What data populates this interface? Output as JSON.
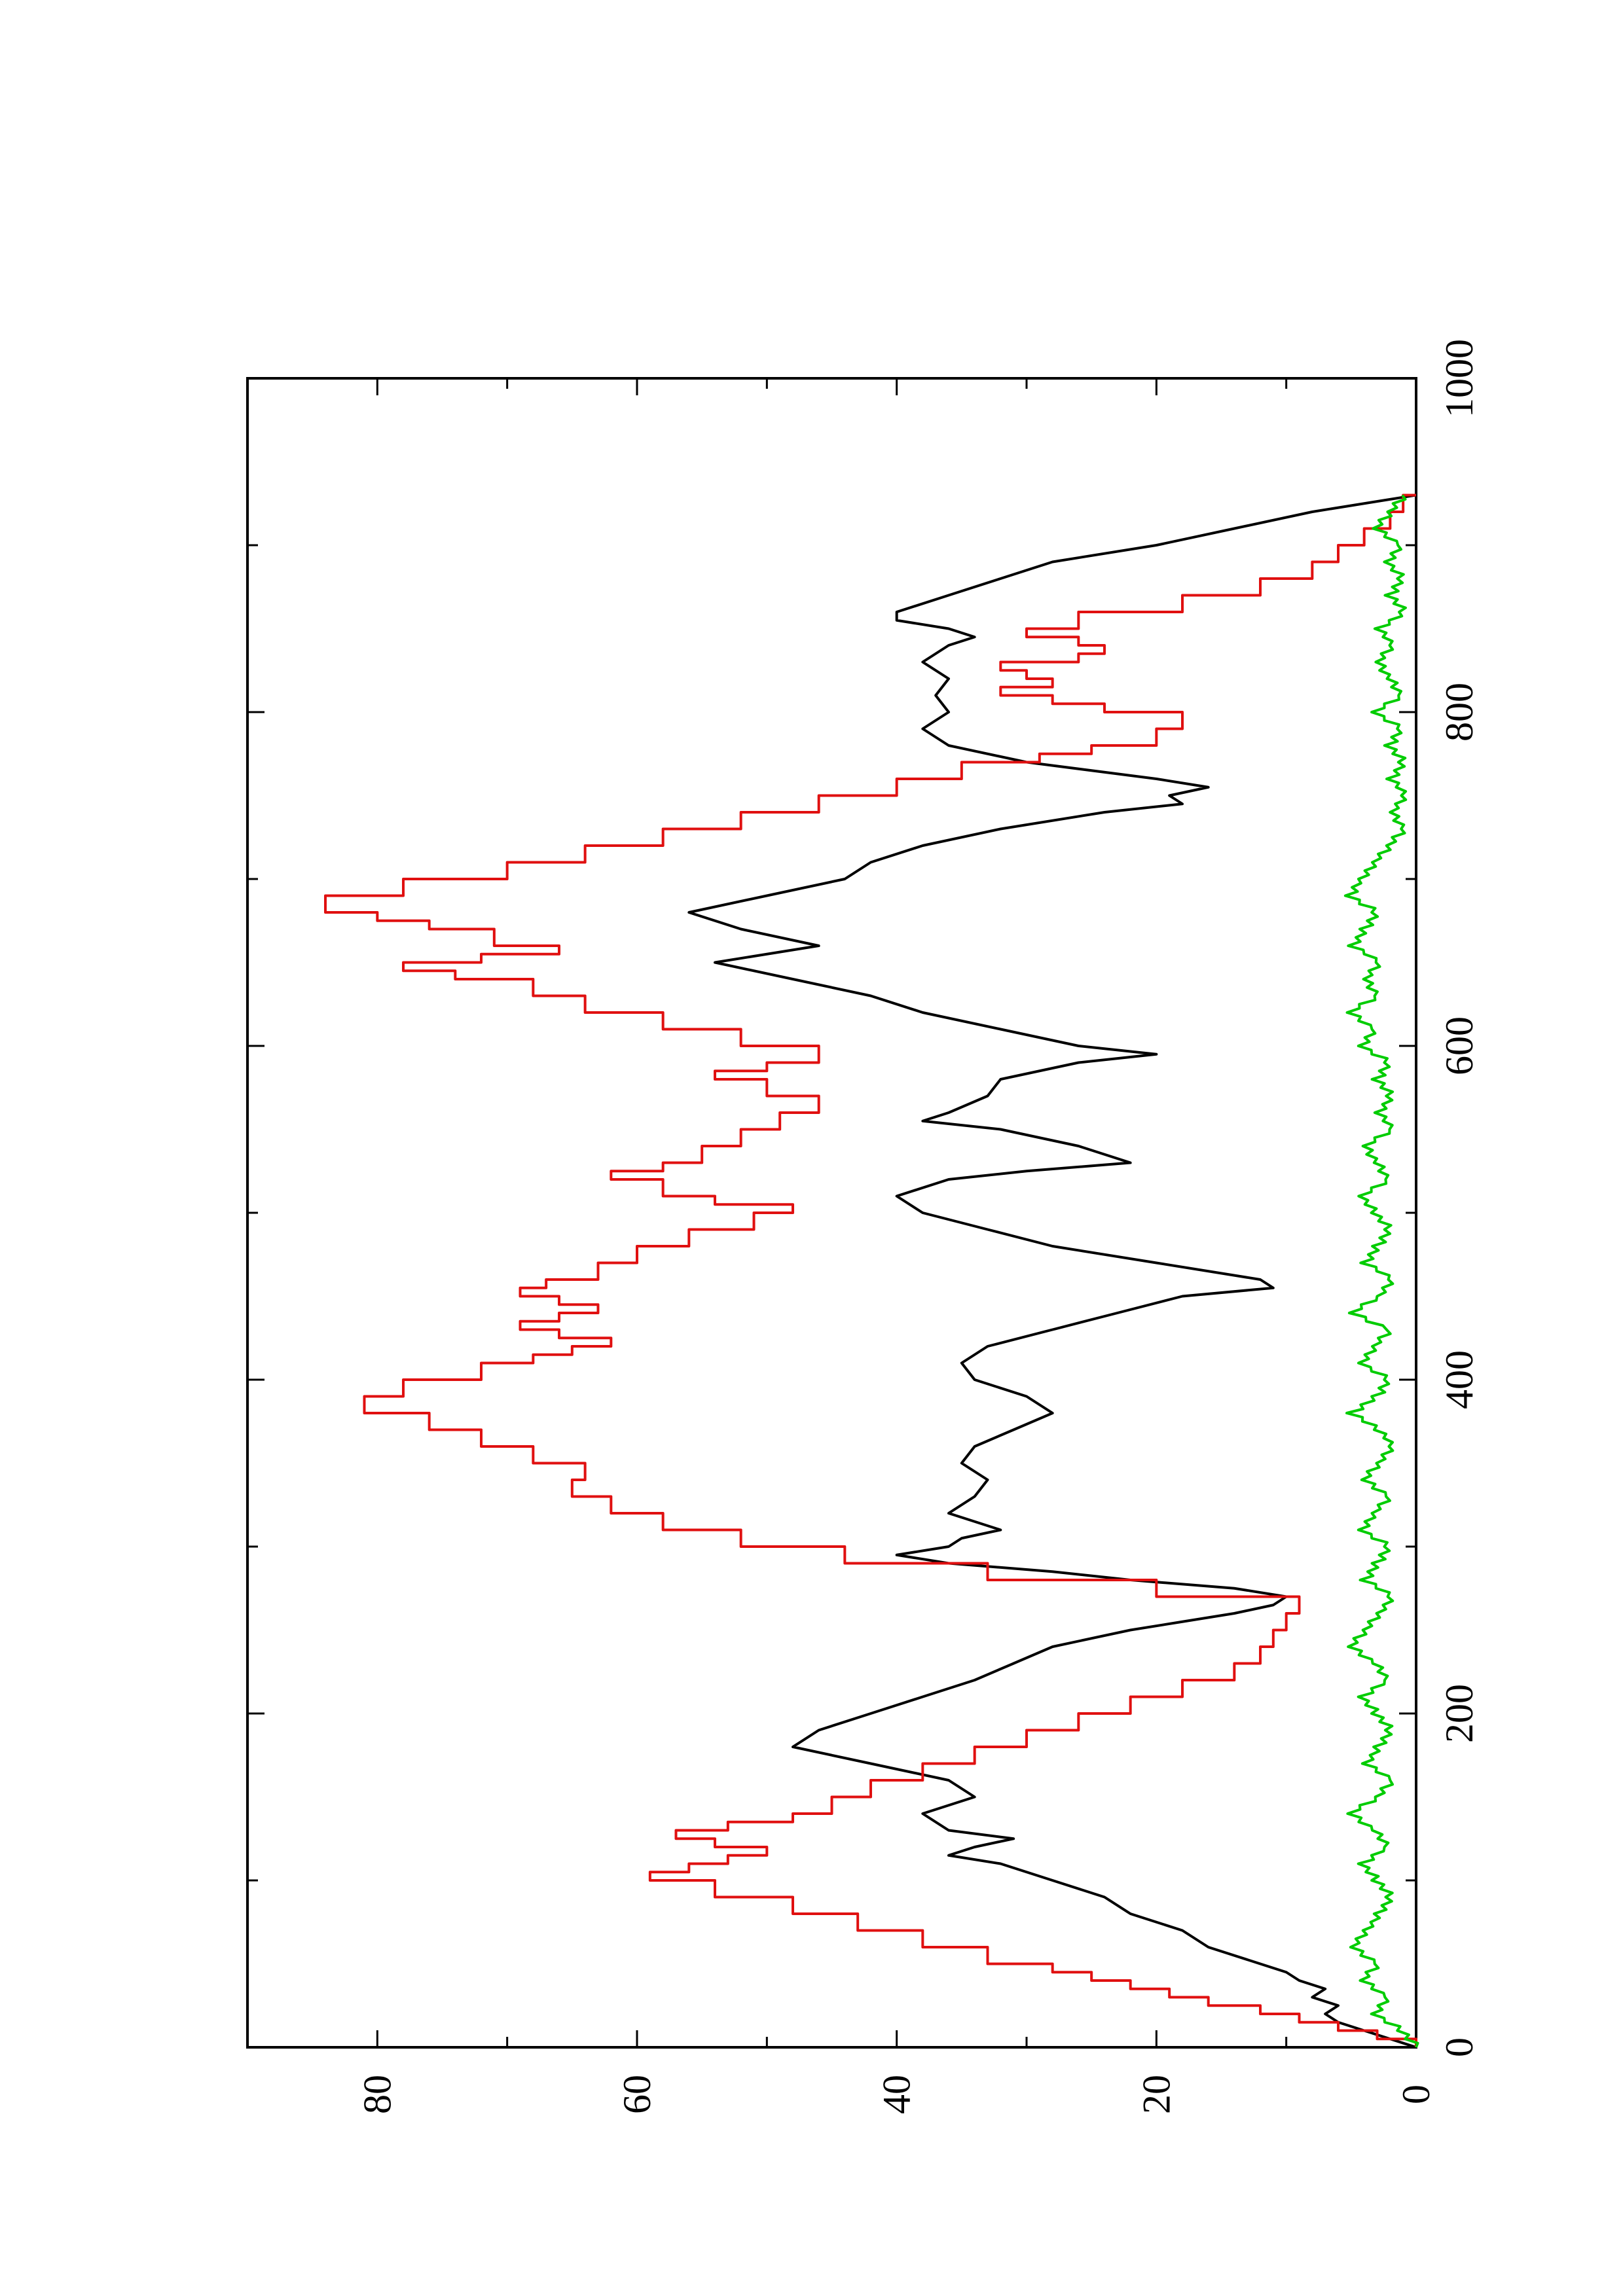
{
  "chart_data": {
    "type": "line",
    "title": "",
    "xlabel": "",
    "ylabel": "",
    "orientation": "rotated 90 degrees counter-clockwise",
    "xlim": [
      0,
      1000
    ],
    "ylim": [
      0,
      90
    ],
    "x_ticks": [
      0,
      200,
      400,
      600,
      800,
      1000
    ],
    "y_ticks": [
      0,
      20,
      40,
      60,
      80
    ],
    "x_ticks_minor": [
      100,
      300,
      500,
      700,
      900
    ],
    "y_ticks_minor": [
      10,
      30,
      50,
      70
    ],
    "grid": false,
    "legend": "none",
    "series": [
      {
        "color": "#000000",
        "style": "smooth",
        "x": [
          0,
          10,
          15,
          20,
          25,
          30,
          35,
          40,
          45,
          50,
          60,
          70,
          80,
          90,
          100,
          110,
          115,
          120,
          125,
          130,
          140,
          150,
          160,
          170,
          180,
          190,
          200,
          210,
          220,
          230,
          240,
          250,
          255,
          260,
          265,
          270,
          275,
          280,
          285,
          290,
          295,
          300,
          305,
          310,
          320,
          330,
          340,
          350,
          360,
          370,
          380,
          390,
          400,
          410,
          420,
          430,
          440,
          450,
          455,
          460,
          470,
          480,
          490,
          500,
          510,
          520,
          525,
          530,
          540,
          550,
          555,
          560,
          570,
          580,
          590,
          595,
          600,
          610,
          620,
          630,
          640,
          650,
          660,
          670,
          680,
          690,
          700,
          710,
          720,
          730,
          740,
          745,
          750,
          755,
          760,
          770,
          780,
          790,
          800,
          810,
          820,
          830,
          840,
          845,
          850,
          855,
          860,
          870,
          880,
          890,
          900,
          910,
          920,
          930
        ],
        "y": [
          0,
          4,
          6,
          7,
          6,
          8,
          7,
          9,
          10,
          12,
          16,
          18,
          22,
          24,
          28,
          32,
          36,
          34,
          31,
          36,
          38,
          34,
          36,
          42,
          48,
          46,
          42,
          38,
          34,
          31,
          28,
          22,
          18,
          14,
          11,
          10,
          14,
          22,
          28,
          36,
          40,
          36,
          35,
          32,
          36,
          34,
          33,
          35,
          34,
          31,
          28,
          30,
          34,
          35,
          33,
          28,
          23,
          18,
          11,
          12,
          20,
          28,
          33,
          38,
          40,
          36,
          30,
          22,
          26,
          32,
          38,
          36,
          33,
          32,
          26,
          20,
          26,
          32,
          38,
          42,
          48,
          54,
          46,
          52,
          56,
          50,
          44,
          42,
          38,
          32,
          24,
          18,
          19,
          16,
          20,
          30,
          36,
          38,
          36,
          37,
          36,
          38,
          36,
          34,
          36,
          40,
          40,
          36,
          32,
          28,
          20,
          14,
          8,
          0
        ]
      },
      {
        "color": "#e01010",
        "style": "step",
        "x": [
          0,
          5,
          10,
          15,
          20,
          25,
          30,
          35,
          40,
          45,
          50,
          60,
          70,
          80,
          90,
          100,
          105,
          110,
          115,
          120,
          125,
          130,
          135,
          140,
          150,
          160,
          170,
          180,
          190,
          200,
          210,
          220,
          230,
          240,
          250,
          260,
          270,
          280,
          290,
          300,
          310,
          320,
          330,
          340,
          350,
          360,
          370,
          380,
          390,
          400,
          410,
          415,
          420,
          425,
          430,
          435,
          440,
          445,
          450,
          455,
          460,
          470,
          480,
          490,
          500,
          505,
          510,
          520,
          525,
          530,
          540,
          550,
          560,
          570,
          580,
          585,
          590,
          600,
          610,
          620,
          630,
          640,
          645,
          650,
          655,
          660,
          670,
          675,
          680,
          690,
          700,
          710,
          720,
          730,
          740,
          750,
          760,
          770,
          775,
          780,
          790,
          800,
          805,
          810,
          815,
          820,
          825,
          830,
          835,
          840,
          845,
          850,
          860,
          870,
          880,
          890,
          900,
          910,
          920,
          930
        ],
        "y": [
          0,
          3,
          6,
          9,
          12,
          16,
          19,
          22,
          25,
          28,
          33,
          38,
          43,
          48,
          54,
          59,
          56,
          53,
          50,
          54,
          57,
          53,
          48,
          45,
          42,
          38,
          34,
          30,
          26,
          22,
          18,
          14,
          12,
          11,
          10,
          9,
          20,
          33,
          44,
          52,
          58,
          62,
          65,
          64,
          68,
          72,
          76,
          81,
          78,
          72,
          68,
          65,
          62,
          66,
          69,
          66,
          63,
          66,
          69,
          67,
          63,
          60,
          56,
          51,
          48,
          54,
          58,
          62,
          58,
          55,
          52,
          49,
          46,
          50,
          54,
          50,
          46,
          52,
          58,
          64,
          68,
          74,
          78,
          72,
          66,
          71,
          76,
          80,
          84,
          78,
          70,
          64,
          58,
          52,
          46,
          40,
          35,
          29,
          25,
          20,
          18,
          24,
          28,
          32,
          28,
          30,
          32,
          26,
          24,
          26,
          30,
          26,
          18,
          12,
          8,
          6,
          4,
          2,
          1,
          0
        ]
      },
      {
        "color": "#00cc00",
        "style": "noisy",
        "x": [
          0,
          10,
          20,
          30,
          40,
          50,
          60,
          70,
          80,
          90,
          100,
          110,
          120,
          130,
          140,
          150,
          160,
          170,
          180,
          190,
          200,
          210,
          220,
          230,
          240,
          250,
          260,
          270,
          280,
          290,
          300,
          310,
          320,
          330,
          340,
          350,
          360,
          370,
          380,
          390,
          400,
          410,
          420,
          430,
          440,
          450,
          460,
          470,
          480,
          490,
          500,
          510,
          520,
          530,
          540,
          550,
          560,
          570,
          580,
          590,
          600,
          610,
          620,
          630,
          640,
          650,
          660,
          670,
          680,
          690,
          700,
          710,
          720,
          730,
          740,
          750,
          760,
          770,
          780,
          790,
          800,
          810,
          820,
          830,
          840,
          850,
          860,
          870,
          880,
          890,
          900,
          910,
          920,
          930
        ],
        "y": [
          0,
          1,
          3,
          2,
          4,
          3,
          5,
          4,
          3,
          2,
          3,
          4,
          2,
          3,
          5,
          3,
          2,
          4,
          3,
          2,
          3,
          4,
          2,
          3,
          5,
          4,
          3,
          2,
          4,
          3,
          2,
          4,
          3,
          2,
          4,
          3,
          2,
          3,
          5,
          3,
          2,
          4,
          3,
          2,
          5,
          3,
          2,
          4,
          3,
          2,
          3,
          4,
          2,
          3,
          4,
          2,
          3,
          2,
          3,
          2,
          4,
          3,
          5,
          3,
          4,
          3,
          5,
          4,
          3,
          5,
          4,
          3,
          2,
          1,
          2,
          1,
          2,
          1,
          2,
          1,
          3,
          1,
          2,
          3,
          2,
          3,
          1,
          2,
          1,
          2,
          1,
          3,
          2,
          1
        ]
      }
    ]
  }
}
